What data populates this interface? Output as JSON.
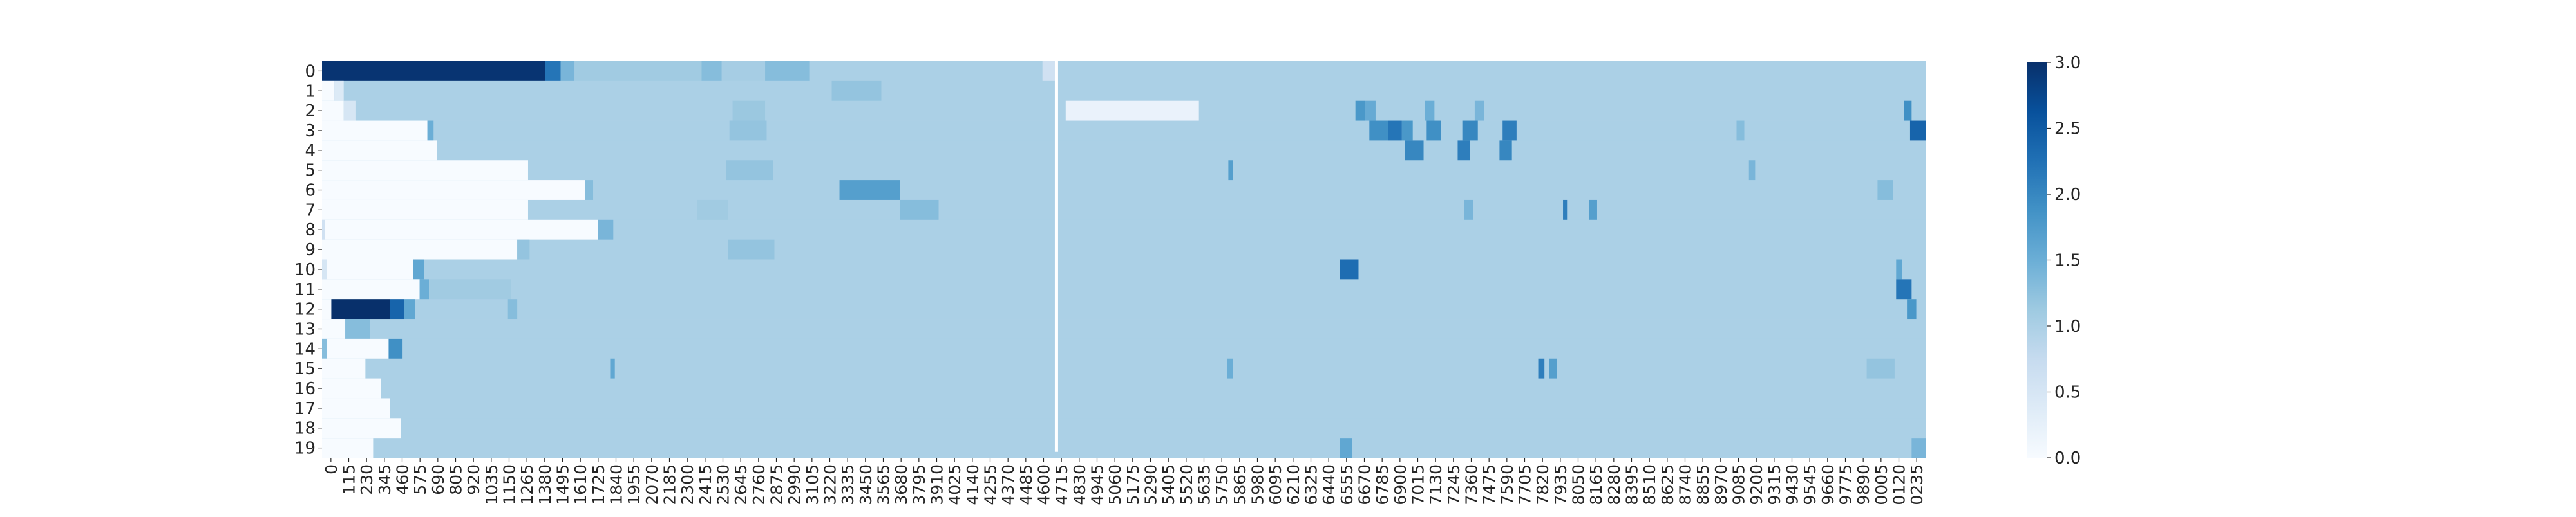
{
  "chart_data": {
    "type": "heatmap",
    "title": "",
    "xlabel": "",
    "ylabel": "",
    "rows": [
      "0",
      "1",
      "2",
      "3",
      "4",
      "5",
      "6",
      "7",
      "8",
      "9",
      "10",
      "11",
      "12",
      "13",
      "14",
      "15",
      "16",
      "17",
      "18",
      "19"
    ],
    "x_tick_labels": [
      "0",
      "115",
      "230",
      "345",
      "460",
      "575",
      "690",
      "805",
      "920",
      "1035",
      "1150",
      "1265",
      "1380",
      "1495",
      "1610",
      "1725",
      "1840",
      "1955",
      "2070",
      "2185",
      "2300",
      "2415",
      "2530",
      "2645",
      "2760",
      "2875",
      "2990",
      "3105",
      "3220",
      "3335",
      "3450",
      "3565",
      "3680",
      "3795",
      "3910",
      "4025",
      "4140",
      "4255",
      "4370",
      "4485",
      "4600",
      "4715",
      "4830",
      "4945",
      "5060",
      "5175",
      "5290",
      "5405",
      "5520",
      "5635",
      "5750",
      "5865",
      "5980",
      "6095",
      "6210",
      "6325",
      "6440",
      "6555",
      "6670",
      "6785",
      "6900",
      "7015",
      "7130",
      "7245",
      "7360",
      "7475",
      "7590",
      "7705",
      "7820",
      "7935",
      "8050",
      "8165",
      "8280",
      "8395",
      "8510",
      "8625",
      "8740",
      "8855",
      "8970",
      "9085",
      "9200",
      "9315",
      "9430",
      "9545",
      "9660",
      "9775",
      "9890",
      "0005",
      "0120",
      "0235"
    ],
    "x_range": [
      0,
      10350
    ],
    "colorbar": {
      "range": [
        0,
        3
      ],
      "ticks": [
        "0.0",
        "0.5",
        "1.0",
        "1.5",
        "2.0",
        "2.5",
        "3.0"
      ]
    },
    "colors": {
      "low": "#f7fbff",
      "mid": "#a6cde3",
      "high": "#08306b"
    },
    "base_value": 1.0,
    "blank_column_at": 4730,
    "row_values": [
      {
        "white_until": 0,
        "segments": [
          [
            0,
            1440,
            2.95
          ],
          [
            1440,
            1540,
            2.2
          ],
          [
            1540,
            1630,
            1.4
          ],
          [
            1630,
            2450,
            1.1
          ],
          [
            2450,
            2580,
            1.3
          ],
          [
            2580,
            2860,
            1.05
          ],
          [
            2860,
            3145,
            1.3
          ],
          [
            4650,
            4730,
            0.6
          ]
        ]
      },
      {
        "white_until": 80,
        "segments": [
          [
            80,
            140,
            0.4
          ],
          [
            3290,
            3610,
            1.2
          ]
        ]
      },
      {
        "white_until": 140,
        "segments": [
          [
            140,
            220,
            0.5
          ],
          [
            2650,
            2860,
            1.15
          ],
          [
            4800,
            5660,
            0.2
          ],
          [
            6670,
            6730,
            1.8
          ],
          [
            6730,
            6800,
            1.55
          ],
          [
            7120,
            7180,
            1.5
          ],
          [
            7440,
            7500,
            1.4
          ],
          [
            10210,
            10260,
            1.9
          ]
        ]
      },
      {
        "white_until": 680,
        "segments": [
          [
            680,
            720,
            1.5
          ],
          [
            2630,
            2870,
            1.2
          ],
          [
            6760,
            6880,
            1.9
          ],
          [
            6880,
            6970,
            2.2
          ],
          [
            6970,
            7040,
            1.8
          ],
          [
            7130,
            7220,
            1.9
          ],
          [
            7360,
            7460,
            2.0
          ],
          [
            7620,
            7710,
            2.1
          ],
          [
            9130,
            9180,
            1.3
          ],
          [
            10250,
            10350,
            2.4
          ]
        ]
      },
      {
        "white_until": 740,
        "segments": [
          [
            6990,
            7110,
            2.0
          ],
          [
            7330,
            7410,
            2.1
          ],
          [
            7600,
            7680,
            2.0
          ]
        ]
      },
      {
        "white_until": 1330,
        "segments": [
          [
            2610,
            2910,
            1.2
          ],
          [
            5850,
            5880,
            1.7
          ],
          [
            9210,
            9250,
            1.4
          ]
        ]
      },
      {
        "white_until": 1700,
        "segments": [
          [
            1700,
            1750,
            1.3
          ],
          [
            3340,
            3730,
            1.7
          ],
          [
            10040,
            10140,
            1.3
          ]
        ]
      },
      {
        "white_until": 1330,
        "segments": [
          [
            2420,
            2620,
            1.1
          ],
          [
            3730,
            3980,
            1.3
          ],
          [
            7370,
            7430,
            1.4
          ],
          [
            8010,
            8040,
            2.1
          ],
          [
            8180,
            8230,
            1.7
          ]
        ]
      },
      {
        "white_until": 1780,
        "segments": [
          [
            0,
            20,
            0.6
          ],
          [
            1780,
            1880,
            1.4
          ]
        ]
      },
      {
        "white_until": 1260,
        "segments": [
          [
            1260,
            1340,
            1.2
          ],
          [
            2620,
            2920,
            1.2
          ]
        ]
      },
      {
        "white_until": 590,
        "segments": [
          [
            0,
            30,
            0.5
          ],
          [
            590,
            660,
            1.6
          ],
          [
            6570,
            6690,
            2.3
          ],
          [
            10160,
            10200,
            1.6
          ]
        ]
      },
      {
        "white_until": 630,
        "segments": [
          [
            630,
            690,
            1.5
          ],
          [
            690,
            1220,
            1.1
          ],
          [
            10160,
            10260,
            2.2
          ]
        ]
      },
      {
        "white_until": 60,
        "segments": [
          [
            60,
            440,
            3.0
          ],
          [
            440,
            530,
            2.4
          ],
          [
            530,
            600,
            1.6
          ],
          [
            1200,
            1260,
            1.3
          ],
          [
            10230,
            10290,
            1.8
          ]
        ]
      },
      {
        "white_until": 150,
        "segments": [
          [
            150,
            310,
            1.3
          ]
        ]
      },
      {
        "white_until": 430,
        "segments": [
          [
            0,
            30,
            1.3
          ],
          [
            430,
            520,
            1.9
          ]
        ]
      },
      {
        "white_until": 280,
        "segments": [
          [
            1860,
            1890,
            1.6
          ],
          [
            5840,
            5880,
            1.5
          ],
          [
            7850,
            7890,
            2.1
          ],
          [
            7920,
            7970,
            1.7
          ],
          [
            9970,
            10150,
            1.2
          ]
        ]
      },
      {
        "white_until": 380,
        "segments": []
      },
      {
        "white_until": 440,
        "segments": []
      },
      {
        "white_until": 510,
        "segments": []
      },
      {
        "white_until": 330,
        "segments": [
          [
            6570,
            6650,
            1.6
          ],
          [
            10260,
            10350,
            1.4
          ]
        ]
      }
    ]
  }
}
